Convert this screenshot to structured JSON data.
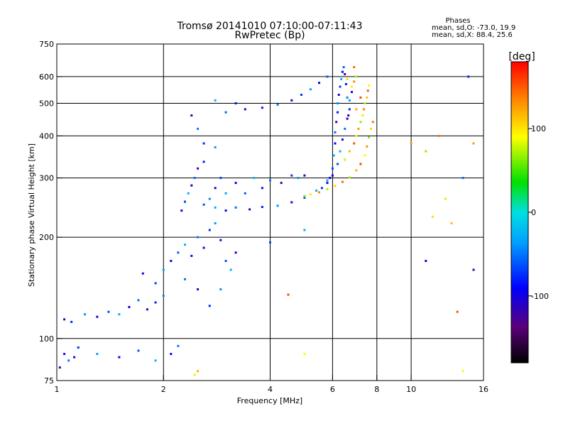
{
  "chart_data": {
    "type": "scatter",
    "title": "Tromsø 20141010 07:10:00-07:11:43",
    "subtitle": "RwPretec (Bp)",
    "xlabel": "Frequency [MHz]",
    "ylabel": "Stationary phase Virtual Height [km]",
    "x_scale": "log",
    "y_scale": "log",
    "xlim": [
      1,
      16
    ],
    "ylim": [
      75,
      750
    ],
    "x_ticks": [
      1,
      2,
      4,
      6,
      8,
      10,
      16
    ],
    "y_ticks": [
      75,
      100,
      200,
      300,
      400,
      500,
      600,
      750
    ],
    "x_grid": [
      2,
      4,
      6,
      8,
      10
    ],
    "y_grid": [
      100,
      200,
      300,
      400,
      500,
      600
    ],
    "grid": true,
    "phase_stats": {
      "title": "Phases",
      "line1": "mean, sd,O: -73.0, 19.9",
      "line2": "mean, sd,X:  88.4, 25.6"
    },
    "colorbar": {
      "label": "[deg]",
      "ticks": [
        100,
        0,
        -100
      ],
      "range": [
        -180,
        180
      ],
      "colormap": "rainbow"
    },
    "series": [
      {
        "name": "O",
        "color_range": [
          -120,
          -20
        ],
        "points": [
          [
            1.02,
            82
          ],
          [
            1.05,
            90
          ],
          [
            1.08,
            86
          ],
          [
            1.12,
            88
          ],
          [
            1.15,
            94
          ],
          [
            1.3,
            90
          ],
          [
            1.5,
            88
          ],
          [
            1.7,
            92
          ],
          [
            1.9,
            86
          ],
          [
            2.1,
            90
          ],
          [
            2.2,
            95
          ],
          [
            1.05,
            114
          ],
          [
            1.1,
            112
          ],
          [
            1.2,
            118
          ],
          [
            1.3,
            116
          ],
          [
            1.4,
            120
          ],
          [
            1.5,
            118
          ],
          [
            1.6,
            124
          ],
          [
            1.7,
            130
          ],
          [
            1.8,
            122
          ],
          [
            1.9,
            128
          ],
          [
            2.0,
            134
          ],
          [
            1.75,
            156
          ],
          [
            1.9,
            146
          ],
          [
            2.0,
            160
          ],
          [
            2.1,
            170
          ],
          [
            2.2,
            180
          ],
          [
            2.3,
            190
          ],
          [
            2.4,
            176
          ],
          [
            2.5,
            200
          ],
          [
            2.6,
            186
          ],
          [
            2.7,
            210
          ],
          [
            2.8,
            220
          ],
          [
            2.9,
            196
          ],
          [
            3.0,
            170
          ],
          [
            3.1,
            160
          ],
          [
            3.2,
            180
          ],
          [
            2.3,
            150
          ],
          [
            2.5,
            140
          ],
          [
            2.7,
            125
          ],
          [
            2.9,
            140
          ],
          [
            2.25,
            240
          ],
          [
            2.3,
            255
          ],
          [
            2.35,
            270
          ],
          [
            2.4,
            285
          ],
          [
            2.45,
            300
          ],
          [
            2.5,
            320
          ],
          [
            2.6,
            335
          ],
          [
            2.7,
            260
          ],
          [
            2.8,
            280
          ],
          [
            2.9,
            300
          ],
          [
            3.0,
            270
          ],
          [
            3.2,
            290
          ],
          [
            3.4,
            270
          ],
          [
            3.6,
            300
          ],
          [
            3.8,
            280
          ],
          [
            4.0,
            295
          ],
          [
            4.3,
            290
          ],
          [
            4.6,
            305
          ],
          [
            4.8,
            300
          ],
          [
            5.0,
            305
          ],
          [
            2.6,
            250
          ],
          [
            2.8,
            245
          ],
          [
            3.0,
            240
          ],
          [
            3.2,
            245
          ],
          [
            3.5,
            242
          ],
          [
            3.8,
            246
          ],
          [
            4.2,
            248
          ],
          [
            4.6,
            254
          ],
          [
            5.0,
            262
          ],
          [
            5.4,
            275
          ],
          [
            5.8,
            290
          ],
          [
            3.0,
            470
          ],
          [
            3.4,
            480
          ],
          [
            3.8,
            485
          ],
          [
            4.2,
            495
          ],
          [
            4.6,
            510
          ],
          [
            4.9,
            530
          ],
          [
            5.2,
            550
          ],
          [
            5.5,
            575
          ],
          [
            5.8,
            600
          ],
          [
            2.8,
            510
          ],
          [
            3.2,
            500
          ],
          [
            2.5,
            420
          ],
          [
            2.4,
            460
          ],
          [
            2.6,
            380
          ],
          [
            2.8,
            370
          ],
          [
            5.9,
            300
          ],
          [
            6.0,
            320
          ],
          [
            6.05,
            350
          ],
          [
            6.1,
            380
          ],
          [
            6.1,
            410
          ],
          [
            6.15,
            440
          ],
          [
            6.2,
            470
          ],
          [
            6.2,
            500
          ],
          [
            6.25,
            530
          ],
          [
            6.3,
            560
          ],
          [
            6.35,
            590
          ],
          [
            6.4,
            620
          ],
          [
            6.45,
            640
          ],
          [
            6.5,
            610
          ],
          [
            6.55,
            570
          ],
          [
            6.6,
            520
          ],
          [
            6.65,
            460
          ],
          [
            5.6,
            280
          ],
          [
            5.8,
            295
          ],
          [
            6.0,
            305
          ],
          [
            6.2,
            330
          ],
          [
            6.3,
            360
          ],
          [
            6.4,
            390
          ],
          [
            6.5,
            420
          ],
          [
            6.6,
            450
          ],
          [
            6.7,
            480
          ],
          [
            6.7,
            510
          ],
          [
            6.8,
            540
          ],
          [
            4.0,
            193
          ],
          [
            5.0,
            210
          ],
          [
            11.0,
            170
          ],
          [
            14.0,
            300
          ],
          [
            15.0,
            160
          ],
          [
            14.5,
            600
          ]
        ]
      },
      {
        "name": "X",
        "color_range": [
          60,
          160
        ],
        "points": [
          [
            5.0,
            265
          ],
          [
            5.2,
            268
          ],
          [
            5.5,
            272
          ],
          [
            5.8,
            278
          ],
          [
            6.1,
            284
          ],
          [
            6.4,
            292
          ],
          [
            6.7,
            302
          ],
          [
            7.0,
            316
          ],
          [
            7.2,
            330
          ],
          [
            7.4,
            350
          ],
          [
            7.5,
            372
          ],
          [
            7.6,
            396
          ],
          [
            7.7,
            420
          ],
          [
            7.8,
            440
          ],
          [
            6.5,
            340
          ],
          [
            6.7,
            360
          ],
          [
            6.9,
            380
          ],
          [
            7.0,
            400
          ],
          [
            7.1,
            420
          ],
          [
            7.2,
            440
          ],
          [
            7.3,
            460
          ],
          [
            7.35,
            480
          ],
          [
            7.4,
            500
          ],
          [
            7.5,
            520
          ],
          [
            7.55,
            545
          ],
          [
            7.6,
            565
          ],
          [
            7.0,
            480
          ],
          [
            7.2,
            520
          ],
          [
            6.8,
            560
          ],
          [
            6.9,
            580
          ],
          [
            7.0,
            600
          ],
          [
            6.6,
            590
          ],
          [
            6.9,
            640
          ],
          [
            2.45,
            78
          ],
          [
            2.5,
            80
          ],
          [
            4.5,
            135
          ],
          [
            5.0,
            90
          ],
          [
            10.0,
            380
          ],
          [
            11.0,
            360
          ],
          [
            11.5,
            230
          ],
          [
            12.0,
            400
          ],
          [
            12.5,
            260
          ],
          [
            13.0,
            220
          ],
          [
            13.5,
            120
          ],
          [
            14.0,
            80
          ],
          [
            15.0,
            380
          ]
        ]
      }
    ]
  }
}
